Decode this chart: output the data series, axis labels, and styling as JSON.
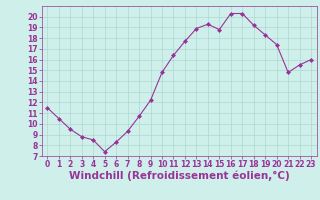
{
  "x": [
    0,
    1,
    2,
    3,
    4,
    5,
    6,
    7,
    8,
    9,
    10,
    11,
    12,
    13,
    14,
    15,
    16,
    17,
    18,
    19,
    20,
    21,
    22,
    23
  ],
  "y": [
    11.5,
    10.5,
    9.5,
    8.8,
    8.5,
    7.4,
    8.3,
    9.3,
    10.7,
    12.2,
    14.8,
    16.4,
    17.7,
    18.9,
    19.3,
    18.8,
    20.3,
    20.3,
    19.2,
    18.3,
    17.4,
    14.8,
    15.5,
    16.0
  ],
  "line_color": "#993399",
  "marker_color": "#993399",
  "bg_color": "#cff0ea",
  "grid_color": "#aad8d0",
  "xlabel": "Windchill (Refroidissement éolien,°C)",
  "xlabel_color": "#993399",
  "ylim": [
    7,
    21
  ],
  "xlim": [
    -0.5,
    23.5
  ],
  "yticks": [
    7,
    8,
    9,
    10,
    11,
    12,
    13,
    14,
    15,
    16,
    17,
    18,
    19,
    20
  ],
  "xticks": [
    0,
    1,
    2,
    3,
    4,
    5,
    6,
    7,
    8,
    9,
    10,
    11,
    12,
    13,
    14,
    15,
    16,
    17,
    18,
    19,
    20,
    21,
    22,
    23
  ],
  "tick_color": "#993399",
  "tick_fontsize": 5.5,
  "xlabel_fontsize": 7.5
}
